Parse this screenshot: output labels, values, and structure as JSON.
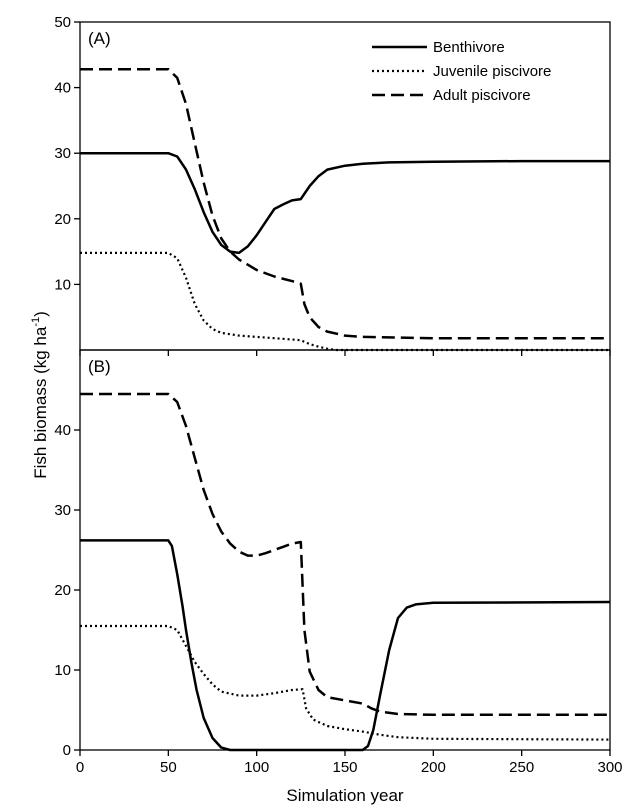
{
  "figure": {
    "xlabel": "Simulation year",
    "ylabel": "Fish biomass (kg ha",
    "ylabel_sup": "-1",
    "ylabel_close": ")"
  },
  "legend": {
    "entries": [
      {
        "label": "Benthivore",
        "style": "solid"
      },
      {
        "label": "Juvenile piscivore",
        "style": "dotted"
      },
      {
        "label": "Adult piscivore",
        "style": "dashed"
      }
    ]
  },
  "chart_data": [
    {
      "type": "line",
      "panel_label": "(A)",
      "xlim": [
        0,
        300
      ],
      "ylim": [
        0,
        50
      ],
      "x_ticks": [
        0,
        50,
        100,
        150,
        200,
        250,
        300
      ],
      "y_ticks": [
        10,
        20,
        30,
        40,
        50
      ],
      "y_tick_labels": [
        "10",
        "20",
        "30",
        "40",
        "50"
      ],
      "series": [
        {
          "name": "Benthivore",
          "style": "solid",
          "points": [
            [
              0,
              30
            ],
            [
              50,
              30
            ],
            [
              55,
              29.5
            ],
            [
              60,
              27.5
            ],
            [
              65,
              24.5
            ],
            [
              70,
              21
            ],
            [
              75,
              18
            ],
            [
              80,
              16
            ],
            [
              85,
              15
            ],
            [
              90,
              14.8
            ],
            [
              95,
              15.8
            ],
            [
              100,
              17.5
            ],
            [
              105,
              19.5
            ],
            [
              110,
              21.5
            ],
            [
              115,
              22.2
            ],
            [
              120,
              22.8
            ],
            [
              125,
              23
            ],
            [
              130,
              25
            ],
            [
              135,
              26.5
            ],
            [
              140,
              27.5
            ],
            [
              150,
              28.1
            ],
            [
              160,
              28.4
            ],
            [
              175,
              28.6
            ],
            [
              200,
              28.7
            ],
            [
              250,
              28.8
            ],
            [
              300,
              28.8
            ]
          ]
        },
        {
          "name": "Juvenile piscivore",
          "style": "dotted",
          "points": [
            [
              0,
              14.8
            ],
            [
              50,
              14.8
            ],
            [
              55,
              14
            ],
            [
              60,
              11
            ],
            [
              65,
              7
            ],
            [
              70,
              4.5
            ],
            [
              75,
              3.2
            ],
            [
              80,
              2.6
            ],
            [
              90,
              2.2
            ],
            [
              100,
              2
            ],
            [
              110,
              1.8
            ],
            [
              120,
              1.6
            ],
            [
              125,
              1.5
            ],
            [
              130,
              0.9
            ],
            [
              135,
              0.5
            ],
            [
              140,
              0.2
            ],
            [
              145,
              0
            ],
            [
              300,
              0
            ]
          ]
        },
        {
          "name": "Adult piscivore",
          "style": "dashed",
          "points": [
            [
              0,
              42.8
            ],
            [
              50,
              42.8
            ],
            [
              55,
              41.5
            ],
            [
              60,
              37.5
            ],
            [
              65,
              31.5
            ],
            [
              70,
              25.5
            ],
            [
              75,
              20.5
            ],
            [
              80,
              17
            ],
            [
              85,
              15
            ],
            [
              90,
              13.8
            ],
            [
              100,
              12.2
            ],
            [
              110,
              11.2
            ],
            [
              120,
              10.5
            ],
            [
              125,
              10.1
            ],
            [
              127,
              7
            ],
            [
              130,
              5
            ],
            [
              135,
              3.5
            ],
            [
              140,
              2.8
            ],
            [
              150,
              2.2
            ],
            [
              160,
              2
            ],
            [
              200,
              1.8
            ],
            [
              300,
              1.8
            ]
          ]
        }
      ]
    },
    {
      "type": "line",
      "panel_label": "(B)",
      "xlim": [
        0,
        300
      ],
      "ylim": [
        0,
        50
      ],
      "x_ticks": [
        0,
        50,
        100,
        150,
        200,
        250,
        300
      ],
      "x_tick_labels": [
        "0",
        "50",
        "100",
        "150",
        "200",
        "250",
        "300"
      ],
      "y_ticks": [
        0,
        10,
        20,
        30,
        40
      ],
      "y_tick_labels": [
        "0",
        "10",
        "20",
        "30",
        "40"
      ],
      "series": [
        {
          "name": "Benthivore",
          "style": "solid",
          "points": [
            [
              0,
              26.2
            ],
            [
              50,
              26.2
            ],
            [
              52,
              25.5
            ],
            [
              55,
              22
            ],
            [
              58,
              18
            ],
            [
              60,
              15
            ],
            [
              63,
              11
            ],
            [
              66,
              7.5
            ],
            [
              70,
              4
            ],
            [
              75,
              1.5
            ],
            [
              80,
              0.3
            ],
            [
              85,
              0
            ],
            [
              160,
              0
            ],
            [
              163,
              0.5
            ],
            [
              166,
              2.5
            ],
            [
              170,
              7
            ],
            [
              175,
              12.5
            ],
            [
              180,
              16.5
            ],
            [
              185,
              17.8
            ],
            [
              190,
              18.2
            ],
            [
              200,
              18.4
            ],
            [
              300,
              18.5
            ]
          ]
        },
        {
          "name": "Juvenile piscivore",
          "style": "dotted",
          "points": [
            [
              0,
              15.5
            ],
            [
              50,
              15.5
            ],
            [
              55,
              15
            ],
            [
              60,
              13
            ],
            [
              65,
              11
            ],
            [
              70,
              9.5
            ],
            [
              75,
              8.2
            ],
            [
              80,
              7.3
            ],
            [
              90,
              6.8
            ],
            [
              100,
              6.8
            ],
            [
              110,
              7.1
            ],
            [
              120,
              7.5
            ],
            [
              126,
              7.6
            ],
            [
              128,
              5.2
            ],
            [
              132,
              3.8
            ],
            [
              140,
              3
            ],
            [
              150,
              2.6
            ],
            [
              160,
              2.3
            ],
            [
              170,
              1.9
            ],
            [
              180,
              1.6
            ],
            [
              200,
              1.4
            ],
            [
              300,
              1.3
            ]
          ]
        },
        {
          "name": "Adult piscivore",
          "style": "dashed",
          "points": [
            [
              0,
              44.5
            ],
            [
              50,
              44.5
            ],
            [
              55,
              43.5
            ],
            [
              60,
              40.5
            ],
            [
              65,
              36.5
            ],
            [
              70,
              32.5
            ],
            [
              75,
              29.5
            ],
            [
              80,
              27.3
            ],
            [
              85,
              25.8
            ],
            [
              90,
              24.8
            ],
            [
              95,
              24.3
            ],
            [
              100,
              24.3
            ],
            [
              105,
              24.6
            ],
            [
              110,
              25
            ],
            [
              115,
              25.4
            ],
            [
              120,
              25.8
            ],
            [
              125,
              26
            ],
            [
              127,
              15
            ],
            [
              130,
              9.8
            ],
            [
              135,
              7.5
            ],
            [
              140,
              6.6
            ],
            [
              150,
              6.2
            ],
            [
              160,
              5.8
            ],
            [
              165,
              5.2
            ],
            [
              170,
              4.8
            ],
            [
              180,
              4.5
            ],
            [
              200,
              4.4
            ],
            [
              300,
              4.4
            ]
          ]
        }
      ]
    }
  ]
}
